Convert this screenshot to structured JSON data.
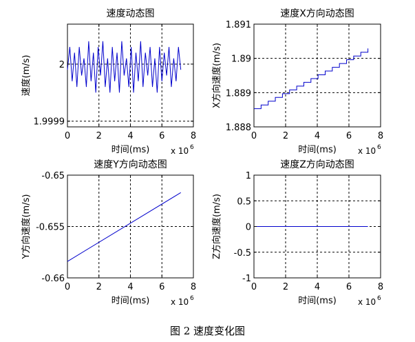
{
  "caption": "图 2  速度变化图",
  "colors": {
    "series": "#0000cc",
    "grid": "#000000",
    "axes": "#000000"
  },
  "chart_data": [
    {
      "type": "line",
      "title": "速度动态图",
      "xlabel": "时间(ms)",
      "ylabel": "速度(m/s)",
      "x_multiplier": "x 10",
      "x_multiplier_exp": "6",
      "xlim": [
        0,
        8
      ],
      "ylim": [
        1.99989,
        2.00007
      ],
      "xticks": [
        0,
        2,
        4,
        6,
        8
      ],
      "xtick_labels": [
        "0",
        "2",
        "4",
        "6",
        "8"
      ],
      "yticks": [
        1.9999,
        2.0
      ],
      "ytick_labels": [
        "1.9999",
        "2"
      ],
      "grid": true,
      "series": [
        {
          "x": [
            0,
            0.15,
            0.3,
            0.45,
            0.6,
            0.75,
            0.9,
            1.05,
            1.2,
            1.35,
            1.5,
            1.65,
            1.8,
            1.95,
            2.1,
            2.25,
            2.4,
            2.55,
            2.7,
            2.85,
            3.0,
            3.15,
            3.3,
            3.45,
            3.6,
            3.75,
            3.9,
            4.05,
            4.2,
            4.35,
            4.5,
            4.65,
            4.8,
            4.95,
            5.1,
            5.25,
            5.4,
            5.55,
            5.7,
            5.85,
            6.0,
            6.15,
            6.3,
            6.45,
            6.6,
            6.75,
            6.9,
            7.05,
            7.2
          ],
          "y": [
            1.99999,
            2.00003,
            1.99997,
            2.00002,
            1.99996,
            2.00003,
            1.99998,
            2.00001,
            1.99996,
            2.00004,
            1.99997,
            2.00002,
            1.99995,
            2.00003,
            1.99998,
            2.00004,
            1.99996,
            2.00001,
            1.99995,
            2.00003,
            1.99997,
            2.00002,
            1.99995,
            2.00004,
            1.99998,
            2.00001,
            1.99996,
            2.00003,
            1.99995,
            2.00002,
            1.99997,
            2.00004,
            1.99996,
            2.00002,
            1.99998,
            2.00003,
            1.99996,
            2.00001,
            1.99995,
            2.00003,
            1.99997,
            2.00002,
            1.99998,
            2.00003,
            1.99996,
            2.00001,
            1.99997,
            2.00003,
            1.99999
          ]
        }
      ]
    },
    {
      "type": "line",
      "title": "速度X方向动态图",
      "xlabel": "时间(ms)",
      "ylabel": "X方向速度(m/s)",
      "x_multiplier": "x 10",
      "x_multiplier_exp": "6",
      "xlim": [
        0,
        8
      ],
      "ylim": [
        1.888,
        1.891
      ],
      "xticks": [
        0,
        2,
        4,
        6,
        8
      ],
      "xtick_labels": [
        "0",
        "2",
        "4",
        "6",
        "8"
      ],
      "yticks": [
        1.888,
        1.889,
        1.89,
        1.891
      ],
      "ytick_labels": [
        "1.888",
        "1.889",
        "1.89",
        "1.891"
      ],
      "grid": true,
      "series": [
        {
          "x": [
            0,
            7.2
          ],
          "y": [
            1.88853,
            1.89029
          ],
          "shape": "staircase",
          "steps": 16
        }
      ]
    },
    {
      "type": "line",
      "title": "速度Y方向动态图",
      "xlabel": "时间(ms)",
      "ylabel": "Y方向速度(m/s)",
      "x_multiplier": "x 10",
      "x_multiplier_exp": "6",
      "xlim": [
        0,
        8
      ],
      "ylim": [
        -0.66,
        -0.65
      ],
      "xticks": [
        0,
        2,
        4,
        6,
        8
      ],
      "xtick_labels": [
        "0",
        "2",
        "4",
        "6",
        "8"
      ],
      "yticks": [
        -0.66,
        -0.655,
        -0.65
      ],
      "ytick_labels": [
        "-0.66",
        "-0.655",
        "-0.65"
      ],
      "grid": true,
      "series": [
        {
          "x": [
            0,
            7.2
          ],
          "y": [
            -0.6584,
            -0.6517
          ]
        }
      ]
    },
    {
      "type": "line",
      "title": "速度Z方向动态图",
      "xlabel": "时间(ms)",
      "ylabel": "Z方向速度(m/s)",
      "x_multiplier": "x 10",
      "x_multiplier_exp": "6",
      "xlim": [
        0,
        8
      ],
      "ylim": [
        -1,
        1
      ],
      "xticks": [
        0,
        2,
        4,
        6,
        8
      ],
      "xtick_labels": [
        "0",
        "2",
        "4",
        "6",
        "8"
      ],
      "yticks": [
        -1,
        -0.5,
        0,
        0.5,
        1
      ],
      "ytick_labels": [
        "-1",
        "-0.5",
        "0",
        "0.5",
        "1"
      ],
      "grid": true,
      "series": [
        {
          "x": [
            0,
            7.2
          ],
          "y": [
            0,
            0
          ]
        }
      ]
    }
  ]
}
